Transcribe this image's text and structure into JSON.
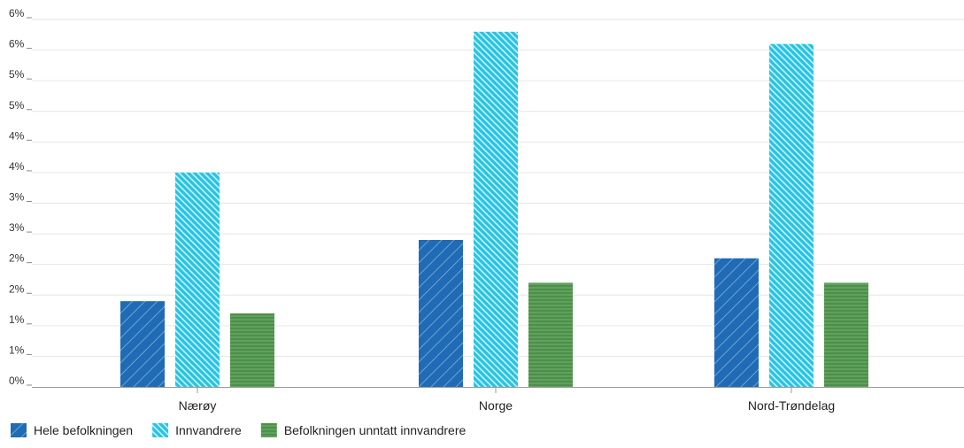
{
  "chart_data": {
    "type": "bar",
    "categories": [
      "Nærøy",
      "Norge",
      "Nord-Trøndelag"
    ],
    "series": [
      {
        "name": "Hele befolkningen",
        "values": [
          1.4,
          2.4,
          2.1
        ],
        "color": "#1f6bb5",
        "pattern": "diag-up"
      },
      {
        "name": "Innvandrere",
        "values": [
          3.5,
          5.8,
          5.6
        ],
        "color": "#29c4e3",
        "pattern": "diag-down"
      },
      {
        "name": "Befolkningen unntatt innvandrere",
        "values": [
          1.2,
          1.7,
          1.7
        ],
        "color": "#4b9148",
        "pattern": "horizontal"
      }
    ],
    "y_tick_labels": [
      "0%",
      "1%",
      "1%",
      "2%",
      "2%",
      "3%",
      "3%",
      "4%",
      "4%",
      "5%",
      "5%",
      "6%",
      "6%"
    ],
    "ylim": [
      0,
      6
    ],
    "grid": true,
    "legend_position": "bottom-left",
    "title": "",
    "xlabel": "",
    "ylabel": ""
  }
}
